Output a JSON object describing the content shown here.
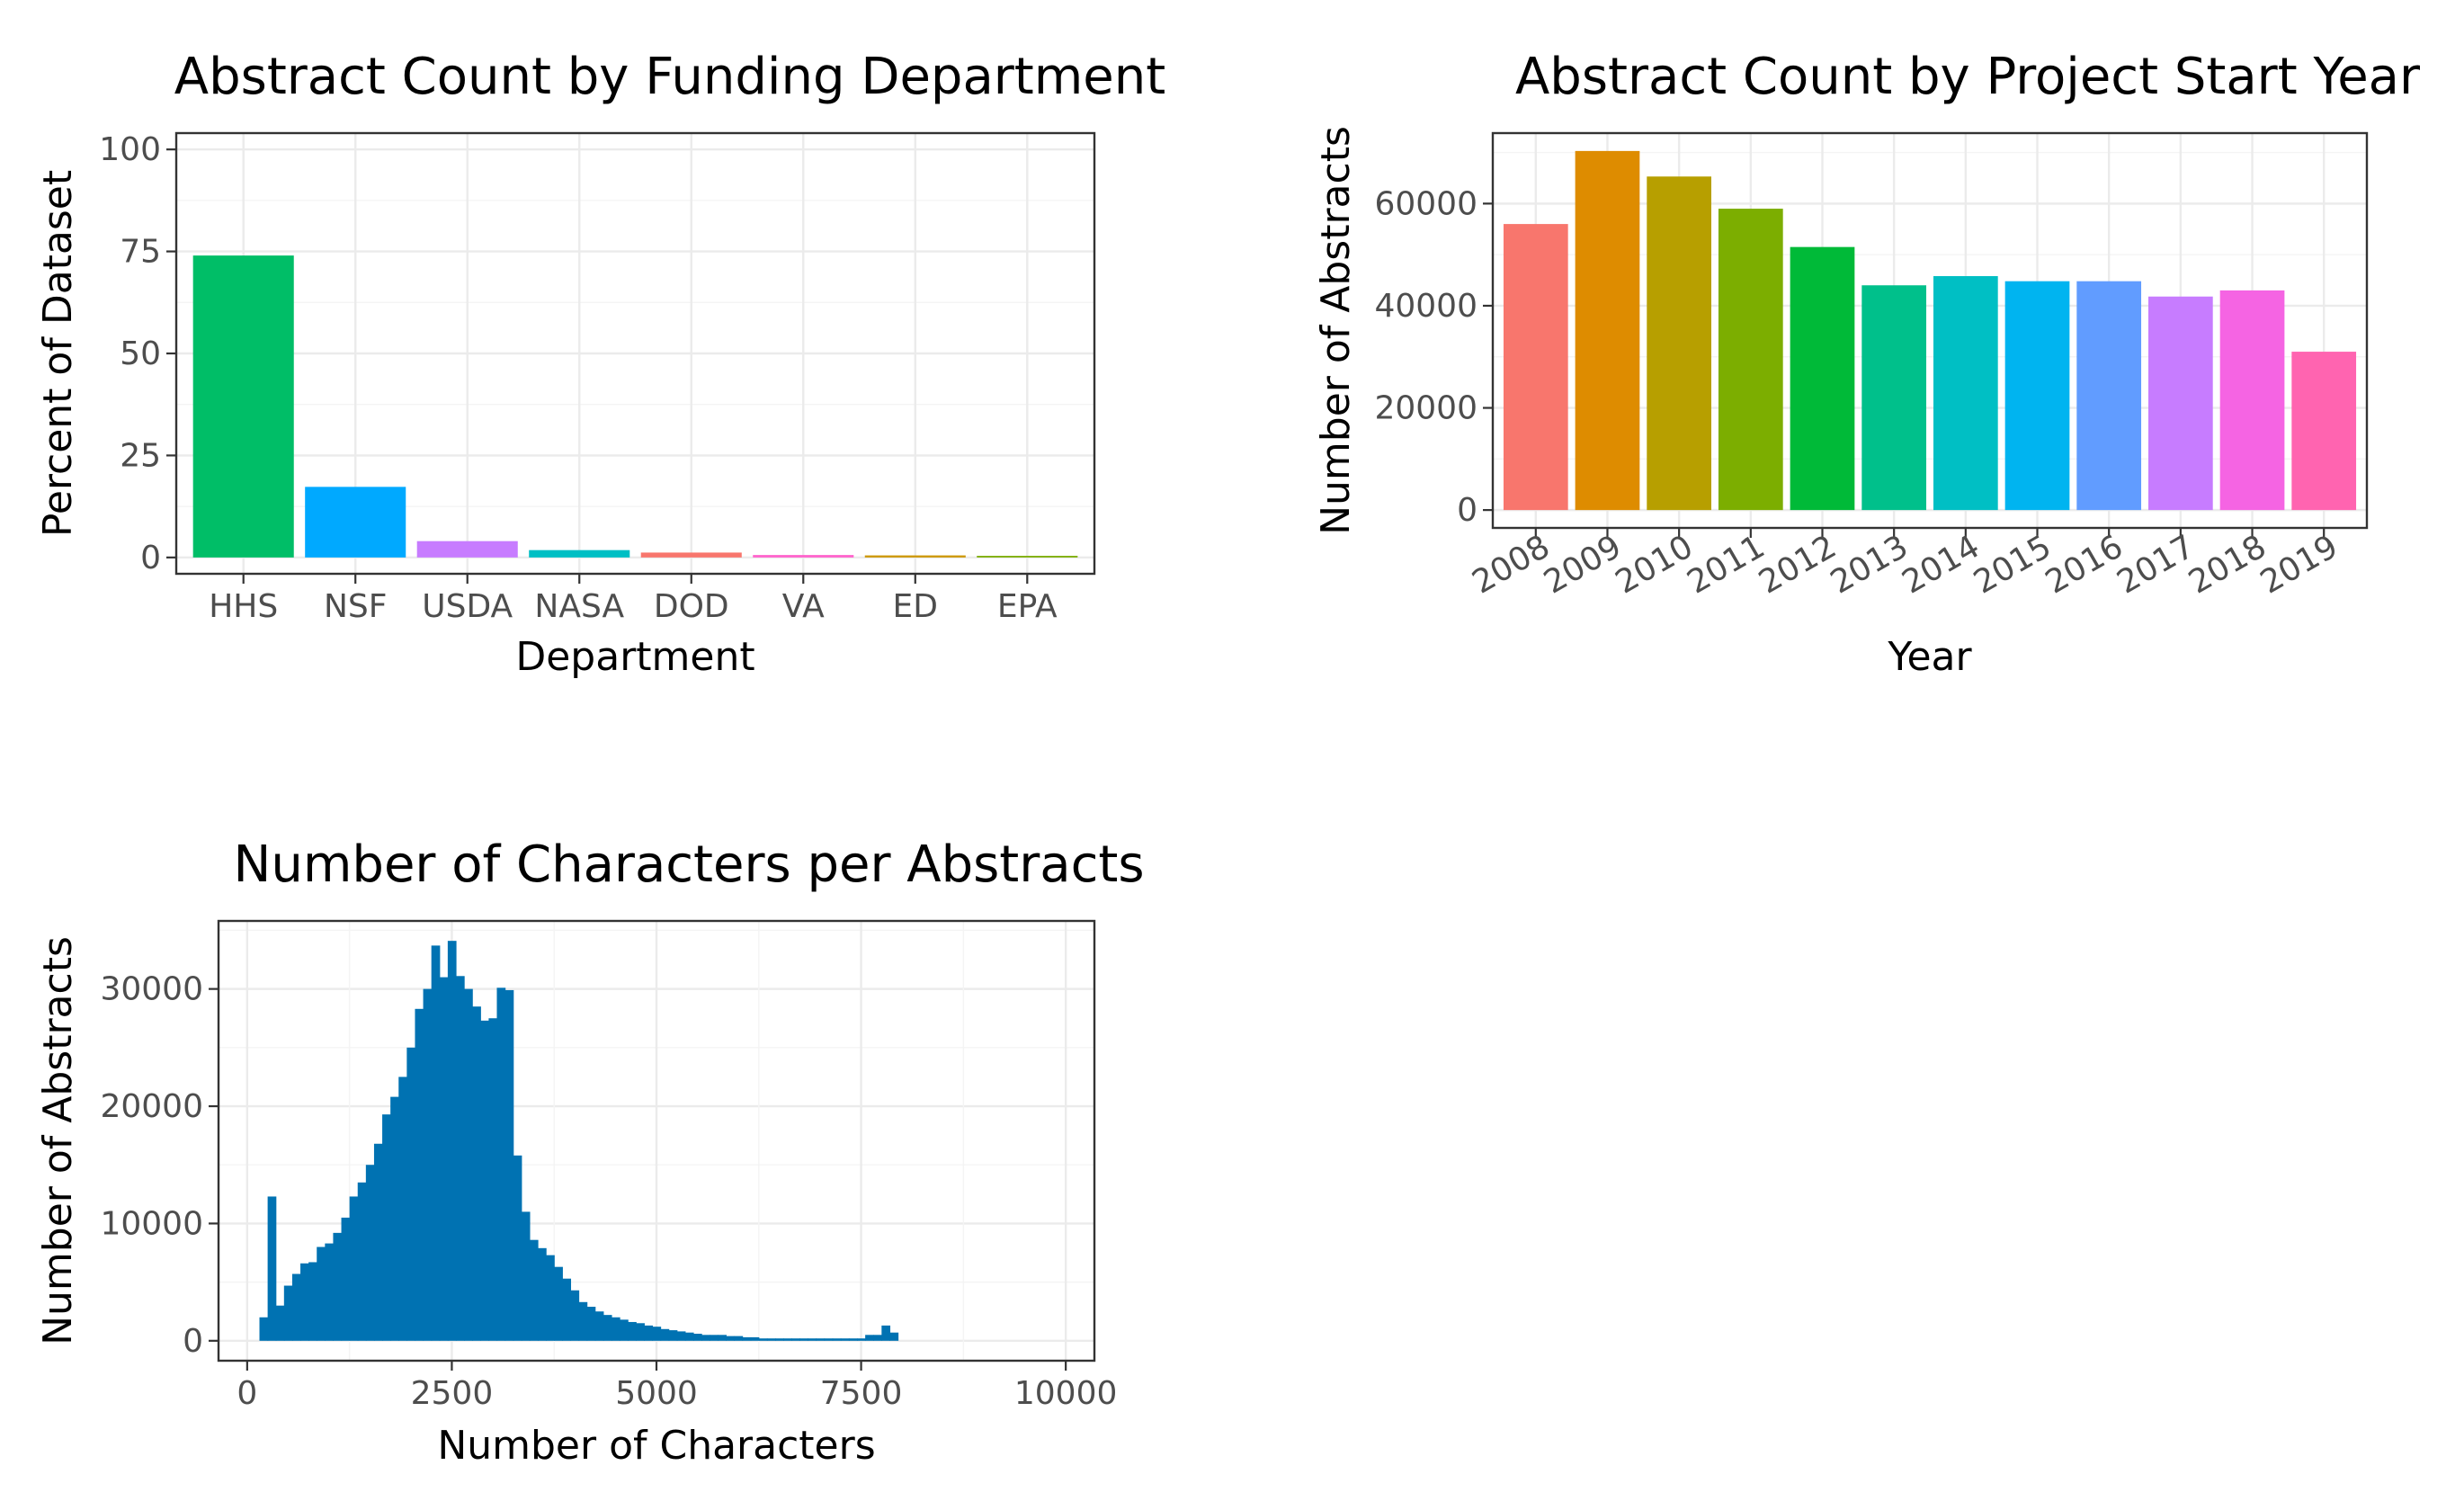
{
  "chart_data": [
    {
      "id": "departments",
      "type": "bar",
      "title": "Abstract Count by Funding Department",
      "xlabel": "Department",
      "ylabel": "Percent of Dataset",
      "categories": [
        "HHS",
        "NSF",
        "USDA",
        "NASA",
        "DOD",
        "VA",
        "ED",
        "EPA"
      ],
      "values": [
        74.0,
        17.3,
        4.0,
        1.8,
        1.2,
        0.6,
        0.5,
        0.4
      ],
      "colors": [
        "#00BE67",
        "#00A9FF",
        "#C77CFF",
        "#00BFC4",
        "#F8766D",
        "#FF61CC",
        "#CD9600",
        "#7CAE00"
      ],
      "ylim": [
        -4,
        104
      ],
      "yticks": [
        0,
        25,
        50,
        75,
        100
      ],
      "ytick_labels": [
        "0",
        "25",
        "50",
        "75",
        "100"
      ],
      "grid": true,
      "legend": "none"
    },
    {
      "id": "years",
      "type": "bar",
      "title": "Abstract Count by Project Start Year",
      "xlabel": "Year",
      "ylabel": "Number of Abstracts",
      "categories": [
        "2008",
        "2009",
        "2010",
        "2011",
        "2012",
        "2013",
        "2014",
        "2015",
        "2016",
        "2017",
        "2018",
        "2019"
      ],
      "values": [
        56000,
        70300,
        65300,
        59000,
        51500,
        44000,
        45800,
        44800,
        44800,
        41800,
        43000,
        31000
      ],
      "colors": [
        "#F8766D",
        "#DE8C00",
        "#B79F00",
        "#7CAE00",
        "#00BA38",
        "#00C08B",
        "#00BFC4",
        "#00B4F0",
        "#619CFF",
        "#C77CFF",
        "#F564E3",
        "#FF64B0"
      ],
      "ylim": [
        -3500,
        73800
      ],
      "yticks": [
        0,
        20000,
        40000,
        60000
      ],
      "ytick_labels": [
        "0",
        "20000",
        "40000",
        "60000"
      ],
      "x_tick_rotation": 30,
      "grid": true,
      "legend": "none"
    },
    {
      "id": "characters",
      "type": "bar",
      "subtype": "histogram",
      "title": "Number of Characters per Abstracts",
      "xlabel": "Number of Characters",
      "ylabel": "Number of Abstracts",
      "color": "#0072B2",
      "bin_width": 100,
      "bin_starts": [
        150,
        250,
        350,
        450,
        550,
        650,
        750,
        850,
        950,
        1050,
        1150,
        1250,
        1350,
        1450,
        1550,
        1650,
        1750,
        1850,
        1950,
        2050,
        2150,
        2250,
        2350,
        2450,
        2550,
        2650,
        2750,
        2850,
        2950,
        3050,
        3150,
        3250,
        3350,
        3450,
        3550,
        3650,
        3750,
        3850,
        3950,
        4050,
        4150,
        4250,
        4350,
        4450,
        4550,
        4650,
        4750,
        4850,
        4950,
        5050,
        5150,
        5250,
        5350,
        5450,
        5550,
        5650,
        5750,
        5850,
        5950,
        6050,
        6150,
        6250,
        6350,
        6450,
        6550,
        6650,
        6750,
        6850,
        6950,
        7050,
        7150,
        7250,
        7350,
        7450,
        7550,
        7650,
        7750,
        7850
      ],
      "counts": [
        2000,
        12300,
        3000,
        4700,
        5700,
        6600,
        6700,
        8000,
        8300,
        9200,
        10500,
        12300,
        13500,
        15000,
        16800,
        19300,
        20800,
        22500,
        25000,
        28300,
        30000,
        33700,
        31000,
        34100,
        31100,
        30000,
        28500,
        27300,
        27500,
        30100,
        29900,
        15800,
        11000,
        8600,
        7900,
        7300,
        6300,
        5300,
        4300,
        3300,
        2900,
        2500,
        2200,
        2000,
        1800,
        1600,
        1500,
        1300,
        1200,
        1000,
        900,
        800,
        700,
        600,
        500,
        500,
        500,
        400,
        400,
        300,
        300,
        200,
        200,
        200,
        200,
        200,
        200,
        200,
        200,
        200,
        200,
        200,
        200,
        200,
        500,
        500,
        1300,
        700
      ],
      "xlim": [
        -350,
        10350
      ],
      "xticks": [
        0,
        2500,
        5000,
        7500,
        10000
      ],
      "xtick_labels": [
        "0",
        "2500",
        "5000",
        "7500",
        "10000"
      ],
      "ylim": [
        -1700,
        35800
      ],
      "yticks": [
        0,
        10000,
        20000,
        30000
      ],
      "ytick_labels": [
        "0",
        "10000",
        "20000",
        "30000"
      ],
      "grid": true,
      "legend": "none"
    }
  ]
}
